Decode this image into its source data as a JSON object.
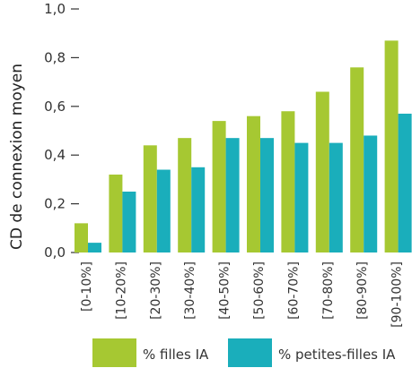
{
  "chart_data": {
    "type": "bar",
    "ylabel": "CD de connexion moyen",
    "xlabel": "",
    "ylim": [
      0,
      1.0
    ],
    "yticks": [
      "0,0",
      "0,2",
      "0,4",
      "0,6",
      "0,8",
      "1,0"
    ],
    "categories": [
      "[0-10%]",
      "[10-20%]",
      "[20-30%]",
      "[30-40%]",
      "[40-50%]",
      "[50-60%]",
      "[60-70%]",
      "[70-80%]",
      "[80-90%]",
      "[90-100%]"
    ],
    "series": [
      {
        "name": "% filles IA",
        "color": "#a6c832",
        "values": [
          0.12,
          0.32,
          0.44,
          0.47,
          0.54,
          0.56,
          0.58,
          0.66,
          0.76,
          0.87
        ]
      },
      {
        "name": "% petites-filles IA",
        "color": "#1aaebb",
        "values": [
          0.04,
          0.25,
          0.34,
          0.35,
          0.47,
          0.47,
          0.45,
          0.45,
          0.48,
          0.57
        ]
      }
    ],
    "grid": false,
    "legend_position": "bottom"
  }
}
